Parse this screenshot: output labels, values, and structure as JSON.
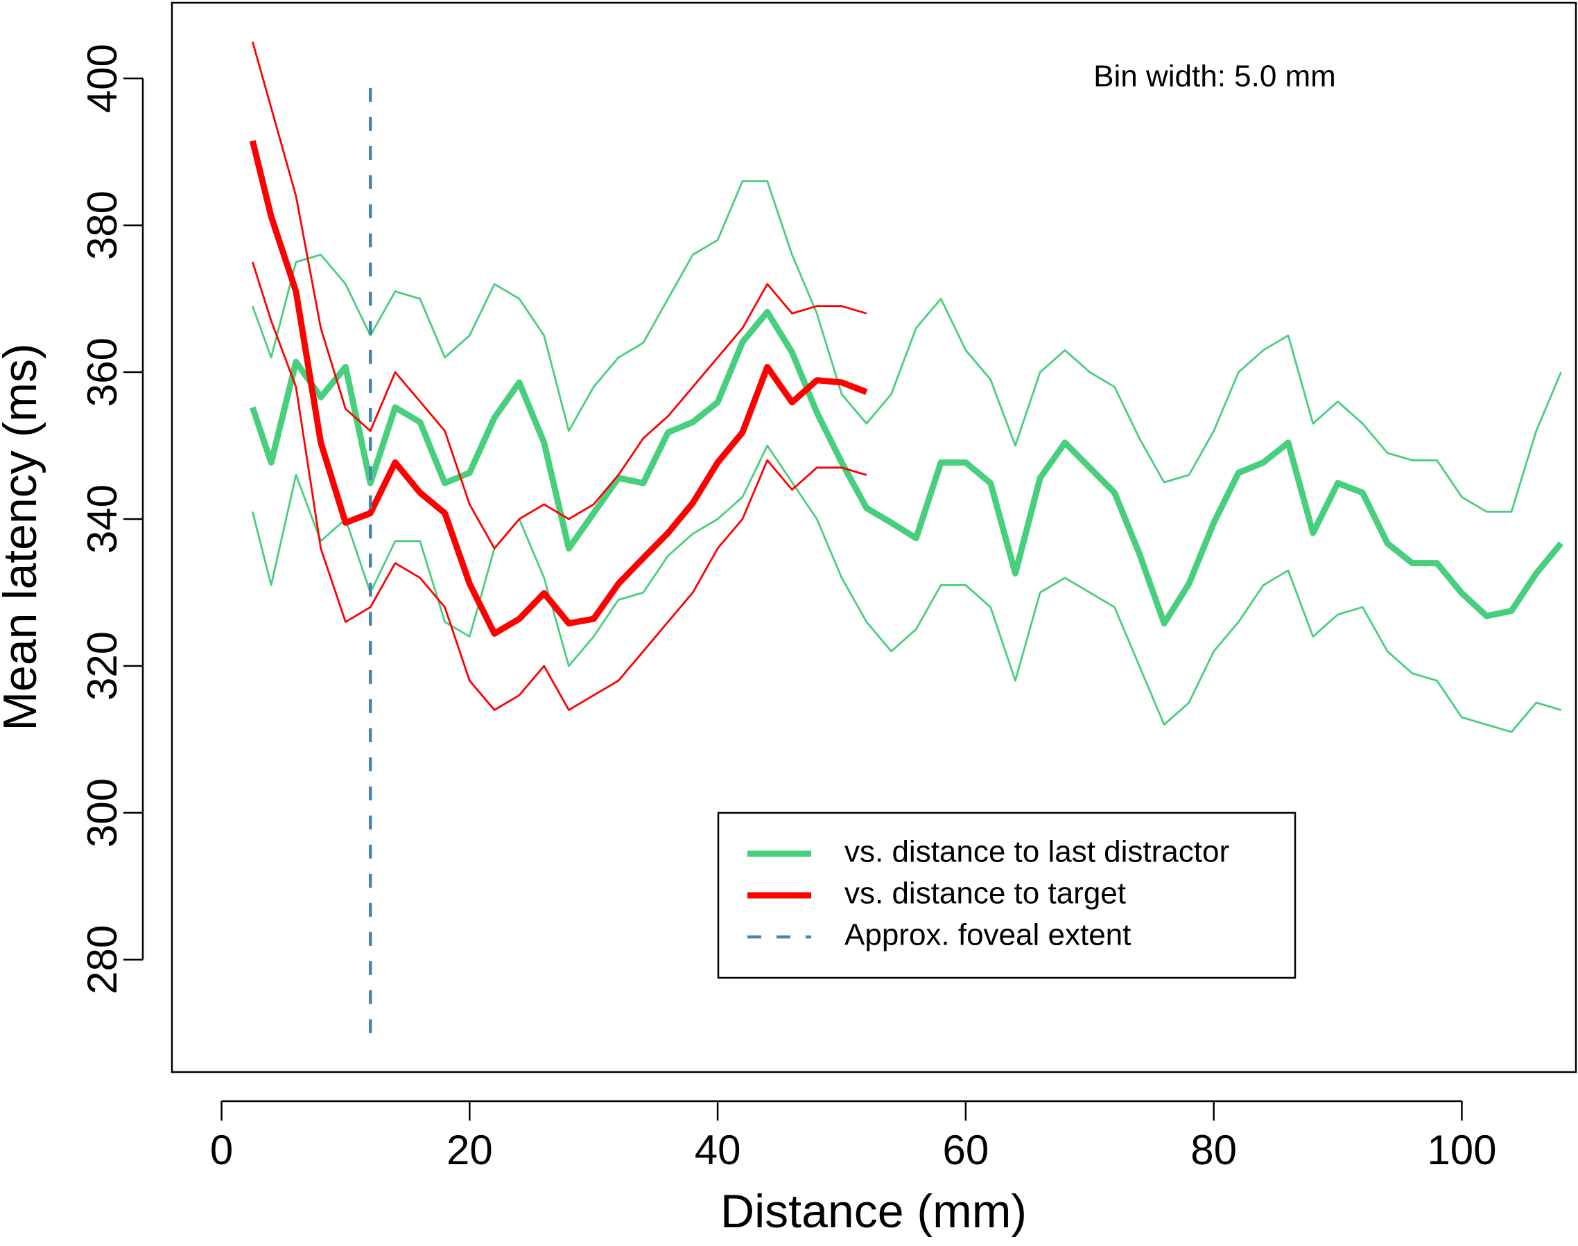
{
  "chart_data": {
    "type": "line",
    "annotation": "Bin width: 5.0 mm",
    "xlabel": "Distance (mm)",
    "ylabel": "Mean latency (ms)",
    "xlim": [
      -4,
      109.2
    ],
    "ylim": [
      264.7,
      410.3
    ],
    "xticks": [
      0,
      20,
      40,
      60,
      80,
      100
    ],
    "yticks": [
      280,
      300,
      320,
      340,
      360,
      380,
      400
    ],
    "legend": "bottom-right",
    "series": [
      {
        "name": "vs. distance to last distractor",
        "color": "#47cf7e",
        "x": [
          2.5,
          4,
          6,
          8,
          10,
          12,
          14,
          16,
          18,
          20,
          22,
          24,
          26,
          28,
          30,
          32,
          34,
          36,
          38,
          40,
          42,
          44,
          46,
          48,
          50,
          52,
          54,
          56,
          58,
          60,
          62,
          64,
          66,
          68,
          70,
          72,
          74,
          76,
          78,
          80,
          82,
          84,
          86,
          88,
          90,
          92,
          94,
          96,
          98,
          100,
          102,
          104,
          106,
          108
        ],
        "values": [
          355.2,
          347.7,
          361.4,
          356.6,
          360.7,
          344.9,
          355.2,
          353.2,
          344.9,
          346.3,
          353.8,
          358.6,
          350.4,
          336,
          340.8,
          345.6,
          344.9,
          351.8,
          353.2,
          355.9,
          364.1,
          368.2,
          362.7,
          354.5,
          347.7,
          341.5,
          339.5,
          337.4,
          347.7,
          347.7,
          344.9,
          332.6,
          345.6,
          350.4,
          347,
          343.6,
          335.3,
          325.8,
          331.2,
          339.5,
          346.3,
          347.7,
          350.4,
          338.1,
          344.9,
          343.6,
          336.7,
          334,
          334,
          329.9,
          326.8,
          327.5,
          332.6,
          336.7
        ],
        "upper": [
          369,
          362,
          375,
          376,
          372,
          365,
          371,
          370,
          362,
          365,
          372,
          370,
          365,
          352,
          358,
          362,
          364,
          370,
          376,
          378,
          386,
          386,
          376,
          368,
          357,
          353,
          357,
          366,
          370,
          363,
          359,
          350,
          360,
          363,
          360,
          358,
          351,
          345,
          346,
          352,
          360,
          363,
          365,
          353,
          356,
          353,
          349,
          348,
          348,
          343,
          341,
          341,
          352,
          360
        ],
        "lower": [
          341,
          331,
          346,
          337,
          340,
          330,
          337,
          337,
          326,
          324,
          336,
          340,
          332,
          320,
          324,
          329,
          330,
          335,
          338,
          340,
          343,
          350,
          345,
          340,
          332,
          326,
          322,
          325,
          331,
          331,
          328,
          318,
          330,
          332,
          330,
          328,
          320,
          312,
          315,
          322,
          326,
          331,
          333,
          324,
          327,
          328,
          322,
          319,
          318,
          313,
          312,
          311,
          315,
          314
        ]
      },
      {
        "name": "vs. distance to target",
        "color": "#ff0000",
        "x": [
          2.5,
          4,
          6,
          8,
          10,
          12,
          14,
          16,
          18,
          20,
          22,
          24,
          26,
          28,
          30,
          32,
          34,
          36,
          38,
          40,
          42,
          44,
          46,
          48,
          50,
          52
        ],
        "values": [
          391.5,
          381.2,
          371,
          350.4,
          339.5,
          340.8,
          347.7,
          343.6,
          340.8,
          331.2,
          324.4,
          326.4,
          329.9,
          325.8,
          326.4,
          331.2,
          334.7,
          338.1,
          342.2,
          347.7,
          351.8,
          360.7,
          355.9,
          358.9,
          358.6,
          357.3
        ],
        "upper": [
          405,
          396,
          384,
          366,
          355,
          352,
          360,
          356,
          352,
          342,
          336,
          340,
          342,
          340,
          342,
          346,
          351,
          354,
          358,
          362,
          366,
          372,
          368,
          369,
          369,
          368
        ],
        "lower": [
          375,
          367,
          358,
          336,
          326,
          328,
          334,
          332,
          328,
          318,
          314,
          316,
          320,
          314,
          316,
          318,
          322,
          326,
          330,
          336,
          340,
          348,
          344,
          347,
          347,
          346
        ]
      }
    ],
    "reference_lines": [
      {
        "name": "Approx. foveal extent",
        "color": "#4682b4",
        "x": 12,
        "ymin": 270,
        "ymax": 400,
        "dashed": true
      }
    ]
  }
}
